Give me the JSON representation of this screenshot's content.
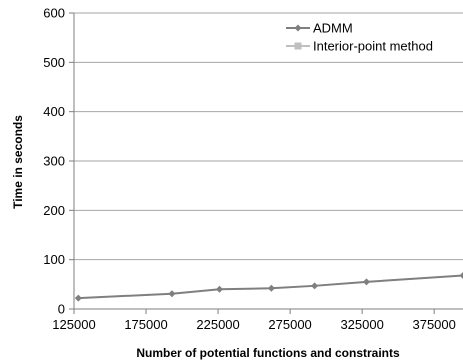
{
  "chart_data": {
    "type": "line",
    "title": "",
    "xlabel": "Number of potential functions and constraints",
    "ylabel": "Time in seconds",
    "xlim": [
      125000,
      395000
    ],
    "ylim": [
      0,
      600
    ],
    "x_ticks": [
      "125000",
      "175000",
      "225000",
      "275000",
      "325000",
      "375000"
    ],
    "y_ticks": [
      "0",
      "100",
      "200",
      "300",
      "400",
      "500",
      "600"
    ],
    "grid": "horizontal",
    "legend_position": "top-right",
    "series": [
      {
        "name": "ADMM",
        "color": "#7f7f7f",
        "marker": "diamond",
        "x": [
          128000,
          193000,
          226000,
          262000,
          292000,
          328000,
          395000
        ],
        "y": [
          22,
          31,
          40,
          42,
          47,
          55,
          68
        ]
      },
      {
        "name": "Interior-point method",
        "color": "#bfbfbf",
        "marker": "square",
        "x": [],
        "y": []
      }
    ]
  }
}
